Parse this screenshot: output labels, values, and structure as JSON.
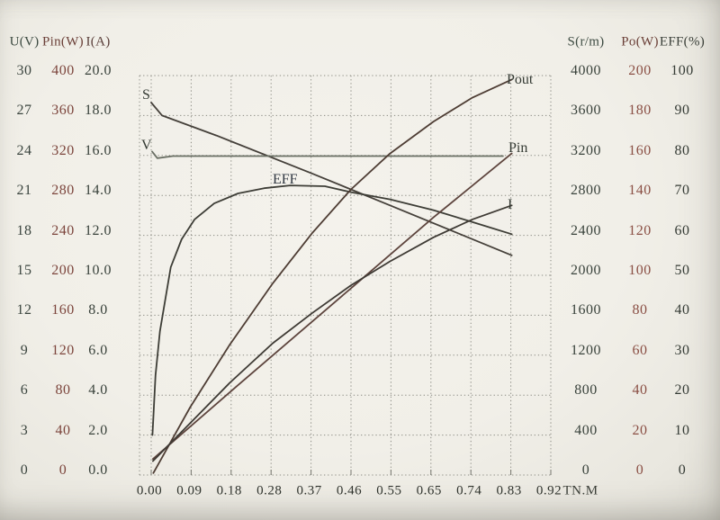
{
  "left_table": {
    "headers": [
      "U(V)",
      "Pin(W)",
      "I(A)"
    ],
    "rows": [
      [
        "30",
        "400",
        "20.0"
      ],
      [
        "27",
        "360",
        "18.0"
      ],
      [
        "24",
        "320",
        "16.0"
      ],
      [
        "21",
        "280",
        "14.0"
      ],
      [
        "18",
        "240",
        "12.0"
      ],
      [
        "15",
        "200",
        "10.0"
      ],
      [
        "12",
        "160",
        "8.0"
      ],
      [
        "9",
        "120",
        "6.0"
      ],
      [
        "6",
        "80",
        "4.0"
      ],
      [
        "3",
        "40",
        "2.0"
      ],
      [
        "0",
        "0",
        "0.0"
      ]
    ]
  },
  "right_table": {
    "headers": [
      "S(r/m)",
      "Po(W)",
      "EFF(%)"
    ],
    "rows": [
      [
        "4000",
        "200",
        "100"
      ],
      [
        "3600",
        "180",
        "90"
      ],
      [
        "3200",
        "160",
        "80"
      ],
      [
        "2800",
        "140",
        "70"
      ],
      [
        "2400",
        "120",
        "60"
      ],
      [
        "2000",
        "100",
        "50"
      ],
      [
        "1600",
        "80",
        "40"
      ],
      [
        "1200",
        "60",
        "30"
      ],
      [
        "800",
        "40",
        "20"
      ],
      [
        "400",
        "20",
        "10"
      ],
      [
        "0",
        "0",
        "0"
      ]
    ]
  },
  "chart_data": {
    "type": "line",
    "title": "",
    "xlabel": "TN.M",
    "x_range": [
      0,
      0.92
    ],
    "x_ticks": [
      "0.00",
      "0.09",
      "0.18",
      "0.28",
      "0.37",
      "0.46",
      "0.55",
      "0.65",
      "0.74",
      "0.83",
      "0.92"
    ],
    "grid": "dotted",
    "legend_position": "labels-on-curves",
    "axes": {
      "left": [
        {
          "label": "U(V)",
          "min": 0,
          "max": 30
        },
        {
          "label": "Pin(W)",
          "min": 0,
          "max": 400
        },
        {
          "label": "I(A)",
          "min": 0,
          "max": 20
        }
      ],
      "right": [
        {
          "label": "S(r/m)",
          "min": 0,
          "max": 4000
        },
        {
          "label": "Po(W)",
          "min": 0,
          "max": 200
        },
        {
          "label": "EFF(%)",
          "min": 0,
          "max": 100
        }
      ]
    },
    "series": [
      {
        "name": "S",
        "axis": "S(r/m)",
        "points": [
          [
            0,
            3730
          ],
          [
            0.025,
            3600
          ],
          [
            0.15,
            3400
          ],
          [
            0.37,
            3020
          ],
          [
            0.55,
            2700
          ],
          [
            0.83,
            2200
          ]
        ]
      },
      {
        "name": "V",
        "axis": "U(V)",
        "points": [
          [
            0.002,
            24.3
          ],
          [
            0.014,
            23.8
          ],
          [
            0.05,
            23.95
          ],
          [
            0.81,
            23.95
          ]
        ]
      },
      {
        "name": "EFF",
        "axis": "EFF(%)",
        "points": [
          [
            0.003,
            10
          ],
          [
            0.01,
            25
          ],
          [
            0.02,
            36
          ],
          [
            0.045,
            52
          ],
          [
            0.07,
            59
          ],
          [
            0.1,
            64
          ],
          [
            0.145,
            68
          ],
          [
            0.2,
            70.5
          ],
          [
            0.26,
            71.8
          ],
          [
            0.32,
            72.5
          ],
          [
            0.4,
            72.3
          ],
          [
            0.46,
            70.8
          ],
          [
            0.55,
            69
          ],
          [
            0.65,
            66.3
          ],
          [
            0.74,
            63.3
          ],
          [
            0.83,
            60.3
          ]
        ]
      },
      {
        "name": "Pout",
        "axis": "Po(W)",
        "points": [
          [
            0.005,
            1
          ],
          [
            0.09,
            34
          ],
          [
            0.18,
            65
          ],
          [
            0.28,
            96
          ],
          [
            0.37,
            121
          ],
          [
            0.46,
            143
          ],
          [
            0.55,
            161
          ],
          [
            0.65,
            177
          ],
          [
            0.74,
            189
          ],
          [
            0.83,
            198
          ]
        ]
      },
      {
        "name": "Pin",
        "axis": "Pin(W)",
        "points": [
          [
            0.004,
            16
          ],
          [
            0.2,
            90
          ],
          [
            0.46,
            187
          ],
          [
            0.65,
            258
          ],
          [
            0.83,
            322
          ]
        ]
      },
      {
        "name": "I",
        "axis": "I(A)",
        "points": [
          [
            0.004,
            0.7
          ],
          [
            0.09,
            2.6
          ],
          [
            0.18,
            4.6
          ],
          [
            0.28,
            6.6
          ],
          [
            0.37,
            8.1
          ],
          [
            0.46,
            9.5
          ],
          [
            0.55,
            10.7
          ],
          [
            0.65,
            11.9
          ],
          [
            0.74,
            12.8
          ],
          [
            0.83,
            13.5
          ]
        ]
      }
    ]
  },
  "colors": {
    "background": "#f1efe8",
    "grid": "#8b8b83",
    "text_dark": "#3a423b",
    "text_maroon": "#7c453c",
    "curve_default": "#45403a"
  }
}
